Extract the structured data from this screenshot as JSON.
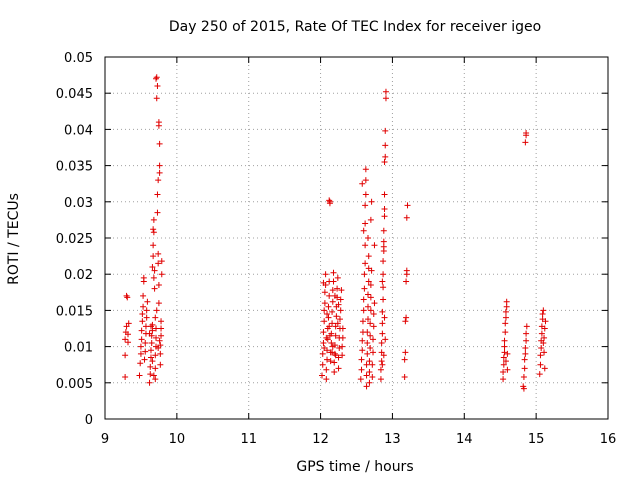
{
  "chart_data": {
    "type": "scatter",
    "title": "Day 250 of 2015, Rate Of TEC Index for receiver igeo",
    "xlabel": "GPS time / hours",
    "ylabel": "ROTI / TECUs",
    "xlim": [
      9,
      16
    ],
    "ylim": [
      0,
      0.05
    ],
    "x_ticks": [
      "9",
      "10",
      "11",
      "12",
      "13",
      "14",
      "15",
      "16"
    ],
    "y_ticks": [
      "0",
      "0.005",
      "0.01",
      "0.015",
      "0.02",
      "0.025",
      "0.03",
      "0.035",
      "0.04",
      "0.045",
      "0.05"
    ],
    "x_tick_values": [
      9,
      10,
      11,
      12,
      13,
      14,
      15,
      16
    ],
    "y_tick_values": [
      0,
      0.005,
      0.01,
      0.015,
      0.02,
      0.025,
      0.03,
      0.035,
      0.04,
      0.045,
      0.05
    ],
    "grid": true,
    "marker": "+",
    "color": "#e00000",
    "series": [
      {
        "name": "ROTI",
        "points": [
          [
            9.28,
            0.0058
          ],
          [
            9.28,
            0.0088
          ],
          [
            9.28,
            0.011
          ],
          [
            9.29,
            0.012
          ],
          [
            9.3,
            0.0128
          ],
          [
            9.3,
            0.017
          ],
          [
            9.31,
            0.0168
          ],
          [
            9.32,
            0.0117
          ],
          [
            9.32,
            0.0106
          ],
          [
            9.33,
            0.0132
          ],
          [
            9.48,
            0.006
          ],
          [
            9.49,
            0.0077
          ],
          [
            9.5,
            0.009
          ],
          [
            9.5,
            0.01
          ],
          [
            9.51,
            0.011
          ],
          [
            9.51,
            0.0122
          ],
          [
            9.52,
            0.0135
          ],
          [
            9.52,
            0.0145
          ],
          [
            9.53,
            0.0155
          ],
          [
            9.53,
            0.017
          ],
          [
            9.54,
            0.019
          ],
          [
            9.54,
            0.0195
          ],
          [
            9.55,
            0.0082
          ],
          [
            9.56,
            0.0093
          ],
          [
            9.56,
            0.0105
          ],
          [
            9.57,
            0.0118
          ],
          [
            9.57,
            0.0128
          ],
          [
            9.58,
            0.014
          ],
          [
            9.58,
            0.015
          ],
          [
            9.59,
            0.0162
          ],
          [
            9.62,
            0.005
          ],
          [
            9.63,
            0.0062
          ],
          [
            9.63,
            0.0072
          ],
          [
            9.64,
            0.0085
          ],
          [
            9.64,
            0.0095
          ],
          [
            9.65,
            0.0105
          ],
          [
            9.65,
            0.0115
          ],
          [
            9.66,
            0.0122
          ],
          [
            9.66,
            0.013
          ],
          [
            9.66,
            0.021
          ],
          [
            9.67,
            0.0225
          ],
          [
            9.67,
            0.024
          ],
          [
            9.67,
            0.0262
          ],
          [
            9.68,
            0.0258
          ],
          [
            9.68,
            0.0275
          ],
          [
            9.68,
            0.0195
          ],
          [
            9.69,
            0.018
          ],
          [
            9.69,
            0.0205
          ],
          [
            9.7,
            0.0055
          ],
          [
            9.7,
            0.007
          ],
          [
            9.7,
            0.0088
          ],
          [
            9.71,
            0.01
          ],
          [
            9.71,
            0.0112
          ],
          [
            9.71,
            0.0125
          ],
          [
            9.71,
            0.047
          ],
          [
            9.72,
            0.0472
          ],
          [
            9.72,
            0.0443
          ],
          [
            9.73,
            0.046
          ],
          [
            9.73,
            0.0285
          ],
          [
            9.73,
            0.031
          ],
          [
            9.74,
            0.033
          ],
          [
            9.74,
            0.0215
          ],
          [
            9.74,
            0.0228
          ],
          [
            9.75,
            0.0185
          ],
          [
            9.75,
            0.016
          ],
          [
            9.75,
            0.0405
          ],
          [
            9.75,
            0.041
          ],
          [
            9.76,
            0.038
          ],
          [
            9.76,
            0.034
          ],
          [
            9.76,
            0.035
          ],
          [
            9.77,
            0.0075
          ],
          [
            9.77,
            0.009
          ],
          [
            9.77,
            0.0102
          ],
          [
            9.78,
            0.0115
          ],
          [
            9.78,
            0.0125
          ],
          [
            9.78,
            0.0135
          ],
          [
            9.79,
            0.0218
          ],
          [
            9.79,
            0.02
          ],
          [
            9.7,
            0.014
          ],
          [
            9.72,
            0.015
          ],
          [
            9.68,
            0.006
          ],
          [
            9.66,
            0.008
          ],
          [
            9.74,
            0.0098
          ],
          [
            9.76,
            0.0108
          ],
          [
            9.62,
            0.0118
          ],
          [
            9.64,
            0.0128
          ],
          [
            12.02,
            0.006
          ],
          [
            12.03,
            0.0075
          ],
          [
            12.03,
            0.009
          ],
          [
            12.04,
            0.0105
          ],
          [
            12.04,
            0.012
          ],
          [
            12.05,
            0.0135
          ],
          [
            12.05,
            0.015
          ],
          [
            12.06,
            0.016
          ],
          [
            12.06,
            0.0175
          ],
          [
            12.07,
            0.0185
          ],
          [
            12.07,
            0.02
          ],
          [
            12.08,
            0.0055
          ],
          [
            12.08,
            0.0068
          ],
          [
            12.09,
            0.0082
          ],
          [
            12.09,
            0.0095
          ],
          [
            12.1,
            0.011
          ],
          [
            12.1,
            0.0125
          ],
          [
            12.11,
            0.014
          ],
          [
            12.11,
            0.0155
          ],
          [
            12.12,
            0.017
          ],
          [
            12.12,
            0.019
          ],
          [
            12.12,
            0.0302
          ],
          [
            12.13,
            0.03
          ],
          [
            12.13,
            0.0298
          ],
          [
            12.14,
            0.008
          ],
          [
            12.14,
            0.0092
          ],
          [
            12.15,
            0.0105
          ],
          [
            12.15,
            0.0118
          ],
          [
            12.16,
            0.0132
          ],
          [
            12.16,
            0.0148
          ],
          [
            12.17,
            0.0162
          ],
          [
            12.17,
            0.0178
          ],
          [
            12.18,
            0.019
          ],
          [
            12.18,
            0.0202
          ],
          [
            12.19,
            0.0065
          ],
          [
            12.19,
            0.0078
          ],
          [
            12.2,
            0.009
          ],
          [
            12.2,
            0.0102
          ],
          [
            12.21,
            0.0115
          ],
          [
            12.21,
            0.0128
          ],
          [
            12.22,
            0.0142
          ],
          [
            12.22,
            0.0155
          ],
          [
            12.23,
            0.0168
          ],
          [
            12.23,
            0.018
          ],
          [
            12.24,
            0.0195
          ],
          [
            12.25,
            0.007
          ],
          [
            12.25,
            0.0085
          ],
          [
            12.26,
            0.0098
          ],
          [
            12.26,
            0.0112
          ],
          [
            12.27,
            0.0125
          ],
          [
            12.27,
            0.0138
          ],
          [
            12.28,
            0.015
          ],
          [
            12.28,
            0.0165
          ],
          [
            12.29,
            0.0178
          ],
          [
            12.3,
            0.0088
          ],
          [
            12.3,
            0.01
          ],
          [
            12.31,
            0.0112
          ],
          [
            12.31,
            0.0125
          ],
          [
            12.05,
            0.0098
          ],
          [
            12.09,
            0.0145
          ],
          [
            12.13,
            0.0115
          ],
          [
            12.17,
            0.01
          ],
          [
            12.21,
            0.0088
          ],
          [
            12.25,
            0.0158
          ],
          [
            12.04,
            0.0188
          ],
          [
            12.08,
            0.0112
          ],
          [
            12.12,
            0.0128
          ],
          [
            12.16,
            0.0092
          ],
          [
            12.2,
            0.017
          ],
          [
            12.24,
            0.0132
          ],
          [
            12.56,
            0.0055
          ],
          [
            12.57,
            0.0068
          ],
          [
            12.57,
            0.0082
          ],
          [
            12.58,
            0.0095
          ],
          [
            12.58,
            0.0108
          ],
          [
            12.59,
            0.012
          ],
          [
            12.59,
            0.0135
          ],
          [
            12.6,
            0.015
          ],
          [
            12.6,
            0.0165
          ],
          [
            12.6,
            0.026
          ],
          [
            12.61,
            0.018
          ],
          [
            12.61,
            0.02
          ],
          [
            12.62,
            0.0215
          ],
          [
            12.62,
            0.024
          ],
          [
            12.62,
            0.0295
          ],
          [
            12.63,
            0.031
          ],
          [
            12.63,
            0.033
          ],
          [
            12.63,
            0.0345
          ],
          [
            12.64,
            0.0045
          ],
          [
            12.64,
            0.006
          ],
          [
            12.64,
            0.0075
          ],
          [
            12.65,
            0.009
          ],
          [
            12.65,
            0.0105
          ],
          [
            12.65,
            0.012
          ],
          [
            12.66,
            0.0138
          ],
          [
            12.66,
            0.0155
          ],
          [
            12.66,
            0.0172
          ],
          [
            12.67,
            0.019
          ],
          [
            12.67,
            0.0208
          ],
          [
            12.67,
            0.0225
          ],
          [
            12.68,
            0.005
          ],
          [
            12.68,
            0.0065
          ],
          [
            12.68,
            0.008
          ],
          [
            12.69,
            0.0098
          ],
          [
            12.69,
            0.0115
          ],
          [
            12.69,
            0.0132
          ],
          [
            12.7,
            0.015
          ],
          [
            12.7,
            0.0168
          ],
          [
            12.7,
            0.0185
          ],
          [
            12.71,
            0.0205
          ],
          [
            12.71,
            0.03
          ],
          [
            12.72,
            0.0058
          ],
          [
            12.72,
            0.0075
          ],
          [
            12.73,
            0.0092
          ],
          [
            12.73,
            0.011
          ],
          [
            12.74,
            0.0128
          ],
          [
            12.74,
            0.0145
          ],
          [
            12.75,
            0.016
          ],
          [
            12.75,
            0.024
          ],
          [
            12.58,
            0.0325
          ],
          [
            12.62,
            0.027
          ],
          [
            12.66,
            0.025
          ],
          [
            12.7,
            0.0275
          ],
          [
            12.84,
            0.0055
          ],
          [
            12.84,
            0.0068
          ],
          [
            12.85,
            0.008
          ],
          [
            12.85,
            0.0092
          ],
          [
            12.85,
            0.0105
          ],
          [
            12.86,
            0.0118
          ],
          [
            12.86,
            0.0132
          ],
          [
            12.86,
            0.0148
          ],
          [
            12.87,
            0.0165
          ],
          [
            12.87,
            0.0182
          ],
          [
            12.87,
            0.02
          ],
          [
            12.87,
            0.0218
          ],
          [
            12.88,
            0.0232
          ],
          [
            12.88,
            0.0238
          ],
          [
            12.88,
            0.0245
          ],
          [
            12.88,
            0.026
          ],
          [
            12.89,
            0.028
          ],
          [
            12.89,
            0.029
          ],
          [
            12.89,
            0.031
          ],
          [
            12.89,
            0.0355
          ],
          [
            12.9,
            0.0362
          ],
          [
            12.9,
            0.0378
          ],
          [
            12.9,
            0.0398
          ],
          [
            12.91,
            0.0452
          ],
          [
            12.91,
            0.0443
          ],
          [
            12.86,
            0.019
          ],
          [
            12.88,
            0.0088
          ],
          [
            12.9,
            0.011
          ],
          [
            12.86,
            0.0075
          ],
          [
            12.89,
            0.014
          ],
          [
            13.17,
            0.0058
          ],
          [
            13.17,
            0.0082
          ],
          [
            13.18,
            0.0092
          ],
          [
            13.18,
            0.0135
          ],
          [
            13.19,
            0.014
          ],
          [
            13.19,
            0.019
          ],
          [
            13.2,
            0.02
          ],
          [
            13.2,
            0.0205
          ],
          [
            13.2,
            0.0278
          ],
          [
            13.21,
            0.0295
          ],
          [
            14.54,
            0.0055
          ],
          [
            14.54,
            0.0065
          ],
          [
            14.55,
            0.0075
          ],
          [
            14.55,
            0.0085
          ],
          [
            14.56,
            0.0092
          ],
          [
            14.56,
            0.01
          ],
          [
            14.56,
            0.0108
          ],
          [
            14.57,
            0.012
          ],
          [
            14.57,
            0.0132
          ],
          [
            14.58,
            0.014
          ],
          [
            14.58,
            0.0148
          ],
          [
            14.59,
            0.0155
          ],
          [
            14.59,
            0.0162
          ],
          [
            14.6,
            0.009
          ],
          [
            14.6,
            0.0068
          ],
          [
            14.58,
            0.008
          ],
          [
            14.82,
            0.0045
          ],
          [
            14.83,
            0.0042
          ],
          [
            14.83,
            0.0058
          ],
          [
            14.84,
            0.007
          ],
          [
            14.84,
            0.0082
          ],
          [
            14.85,
            0.009
          ],
          [
            14.85,
            0.0098
          ],
          [
            14.86,
            0.0108
          ],
          [
            14.86,
            0.0118
          ],
          [
            14.87,
            0.0128
          ],
          [
            14.85,
            0.0382
          ],
          [
            14.86,
            0.0392
          ],
          [
            14.86,
            0.0395
          ],
          [
            15.05,
            0.0062
          ],
          [
            15.06,
            0.0075
          ],
          [
            15.06,
            0.0088
          ],
          [
            15.07,
            0.0098
          ],
          [
            15.07,
            0.0108
          ],
          [
            15.08,
            0.0118
          ],
          [
            15.08,
            0.0128
          ],
          [
            15.09,
            0.0138
          ],
          [
            15.09,
            0.0145
          ],
          [
            15.1,
            0.015
          ],
          [
            15.1,
            0.0105
          ],
          [
            15.11,
            0.0112
          ],
          [
            15.11,
            0.0092
          ],
          [
            15.12,
            0.0125
          ],
          [
            15.12,
            0.007
          ],
          [
            15.13,
            0.0135
          ]
        ]
      }
    ]
  }
}
